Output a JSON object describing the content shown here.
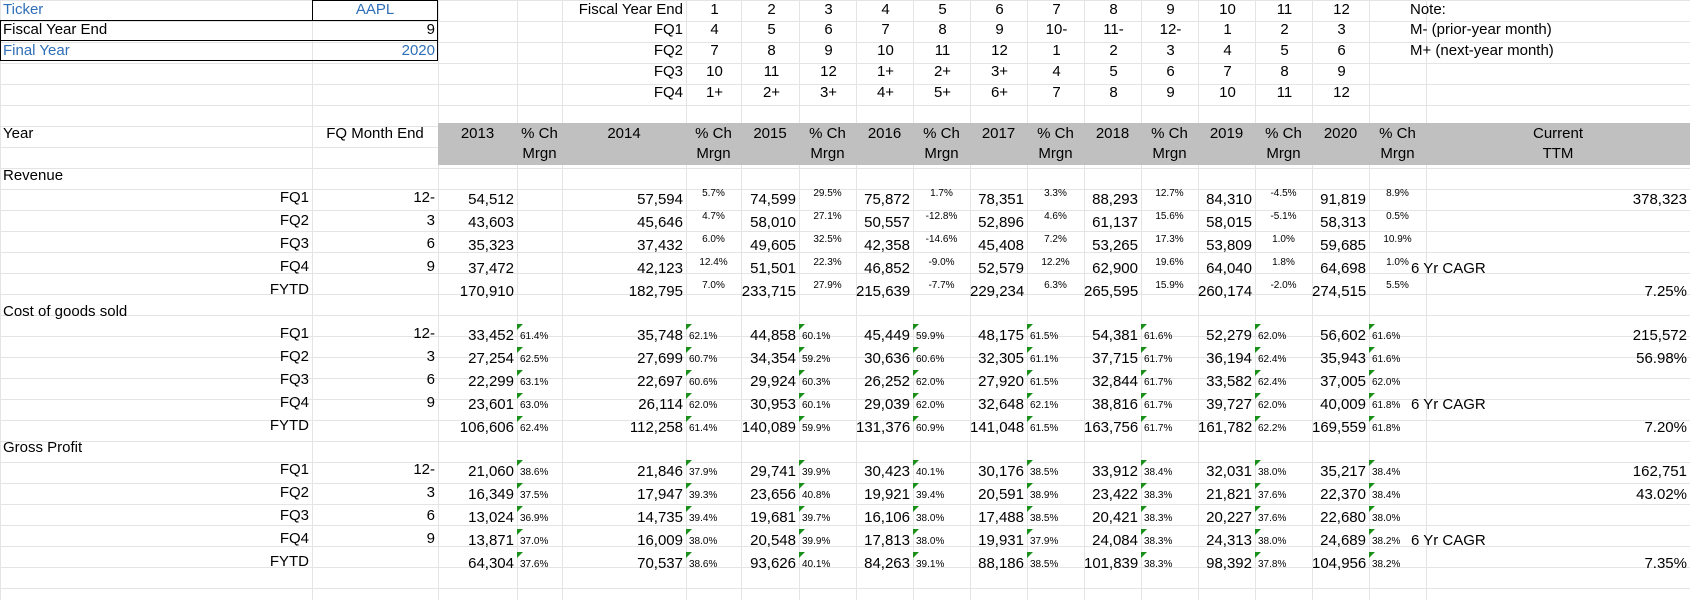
{
  "inputs": {
    "ticker_label": "Ticker",
    "ticker_value": "AAPL",
    "fye_label": "Fiscal Year End",
    "fye_value": "9",
    "final_year_label": "Final Year",
    "final_year_value": "2020"
  },
  "fq_map": {
    "header_label": "Fiscal Year End",
    "months": [
      "1",
      "2",
      "3",
      "4",
      "5",
      "6",
      "7",
      "8",
      "9",
      "10",
      "11",
      "12"
    ],
    "rows": [
      {
        "label": "FQ1",
        "values": [
          "4",
          "5",
          "6",
          "7",
          "8",
          "9",
          "10-",
          "11-",
          "12-",
          "1",
          "2",
          "3"
        ]
      },
      {
        "label": "FQ2",
        "values": [
          "7",
          "8",
          "9",
          "10",
          "11",
          "12",
          "1",
          "2",
          "3",
          "4",
          "5",
          "6"
        ]
      },
      {
        "label": "FQ3",
        "values": [
          "10",
          "11",
          "12",
          "1+",
          "2+",
          "3+",
          "4",
          "5",
          "6",
          "7",
          "8",
          "9"
        ]
      },
      {
        "label": "FQ4",
        "values": [
          "1+",
          "2+",
          "3+",
          "4+",
          "5+",
          "6+",
          "7",
          "8",
          "9",
          "10",
          "11",
          "12"
        ]
      }
    ]
  },
  "note": {
    "title": "Note:",
    "line1": "M- (prior-year month)",
    "line2": "M+ (next-year month)"
  },
  "header": {
    "year_label": "Year",
    "fq_month_end_label": "FQ Month End",
    "years": [
      "2013",
      "2014",
      "2015",
      "2016",
      "2017",
      "2018",
      "2019",
      "2020"
    ],
    "pct_label_top": "% Ch",
    "pct_label_bottom": "Mrgn",
    "current_top": "Current",
    "current_bottom": "TTM"
  },
  "sections": [
    {
      "title": "Revenue",
      "rows": [
        {
          "label": "FQ1",
          "month": "12-",
          "values": [
            "54,512",
            "57,594",
            "74,599",
            "75,872",
            "78,351",
            "88,293",
            "84,310",
            "91,819"
          ],
          "pcts": [
            "",
            "5.7%",
            "29.5%",
            "1.7%",
            "3.3%",
            "12.7%",
            "-4.5%",
            "8.9%"
          ],
          "right": "378,323"
        },
        {
          "label": "FQ2",
          "month": "3",
          "values": [
            "43,603",
            "45,646",
            "58,010",
            "50,557",
            "52,896",
            "61,137",
            "58,015",
            "58,313"
          ],
          "pcts": [
            "",
            "4.7%",
            "27.1%",
            "-12.8%",
            "4.6%",
            "15.6%",
            "-5.1%",
            "0.5%"
          ],
          "right": ""
        },
        {
          "label": "FQ3",
          "month": "6",
          "values": [
            "35,323",
            "37,432",
            "49,605",
            "42,358",
            "45,408",
            "53,265",
            "53,809",
            "59,685"
          ],
          "pcts": [
            "",
            "6.0%",
            "32.5%",
            "-14.6%",
            "7.2%",
            "17.3%",
            "1.0%",
            "10.9%"
          ],
          "right": ""
        },
        {
          "label": "FQ4",
          "month": "9",
          "values": [
            "37,472",
            "42,123",
            "51,501",
            "46,852",
            "52,579",
            "62,900",
            "64,040",
            "64,698"
          ],
          "pcts": [
            "",
            "12.4%",
            "22.3%",
            "-9.0%",
            "12.2%",
            "19.6%",
            "1.8%",
            "1.0%"
          ],
          "right": "6 Yr CAGR"
        },
        {
          "label": "FYTD",
          "month": "",
          "values": [
            "170,910",
            "182,795",
            "233,715",
            "215,639",
            "229,234",
            "265,595",
            "260,174",
            "274,515"
          ],
          "pcts": [
            "",
            "7.0%",
            "27.9%",
            "-7.7%",
            "6.3%",
            "15.9%",
            "-2.0%",
            "5.5%"
          ],
          "right": "7.25%"
        }
      ]
    },
    {
      "title": "Cost of goods sold",
      "rows": [
        {
          "label": "FQ1",
          "month": "12-",
          "values": [
            "33,452",
            "35,748",
            "44,858",
            "45,449",
            "48,175",
            "54,381",
            "52,279",
            "56,602"
          ],
          "pcts": [
            "61.4%",
            "62.1%",
            "60.1%",
            "59.9%",
            "61.5%",
            "61.6%",
            "62.0%",
            "61.6%"
          ],
          "right": "215,572"
        },
        {
          "label": "FQ2",
          "month": "3",
          "values": [
            "27,254",
            "27,699",
            "34,354",
            "30,636",
            "32,305",
            "37,715",
            "36,194",
            "35,943"
          ],
          "pcts": [
            "62.5%",
            "60.7%",
            "59.2%",
            "60.6%",
            "61.1%",
            "61.7%",
            "62.4%",
            "61.6%"
          ],
          "right": "56.98%"
        },
        {
          "label": "FQ3",
          "month": "6",
          "values": [
            "22,299",
            "22,697",
            "29,924",
            "26,252",
            "27,920",
            "32,844",
            "33,582",
            "37,005"
          ],
          "pcts": [
            "63.1%",
            "60.6%",
            "60.3%",
            "62.0%",
            "61.5%",
            "61.7%",
            "62.4%",
            "62.0%"
          ],
          "right": ""
        },
        {
          "label": "FQ4",
          "month": "9",
          "values": [
            "23,601",
            "26,114",
            "30,953",
            "29,039",
            "32,648",
            "38,816",
            "39,727",
            "40,009"
          ],
          "pcts": [
            "63.0%",
            "62.0%",
            "60.1%",
            "62.0%",
            "62.1%",
            "61.7%",
            "62.0%",
            "61.8%"
          ],
          "right": "6 Yr CAGR"
        },
        {
          "label": "FYTD",
          "month": "",
          "values": [
            "106,606",
            "112,258",
            "140,089",
            "131,376",
            "141,048",
            "163,756",
            "161,782",
            "169,559"
          ],
          "pcts": [
            "62.4%",
            "61.4%",
            "59.9%",
            "60.9%",
            "61.5%",
            "61.7%",
            "62.2%",
            "61.8%"
          ],
          "right": "7.20%"
        }
      ]
    },
    {
      "title": "Gross Profit",
      "rows": [
        {
          "label": "FQ1",
          "month": "12-",
          "values": [
            "21,060",
            "21,846",
            "29,741",
            "30,423",
            "30,176",
            "33,912",
            "32,031",
            "35,217"
          ],
          "pcts": [
            "38.6%",
            "37.9%",
            "39.9%",
            "40.1%",
            "38.5%",
            "38.4%",
            "38.0%",
            "38.4%"
          ],
          "right": "162,751"
        },
        {
          "label": "FQ2",
          "month": "3",
          "values": [
            "16,349",
            "17,947",
            "23,656",
            "19,921",
            "20,591",
            "23,422",
            "21,821",
            "22,370"
          ],
          "pcts": [
            "37.5%",
            "39.3%",
            "40.8%",
            "39.4%",
            "38.9%",
            "38.3%",
            "37.6%",
            "38.4%"
          ],
          "right": "43.02%"
        },
        {
          "label": "FQ3",
          "month": "6",
          "values": [
            "13,024",
            "14,735",
            "19,681",
            "16,106",
            "17,488",
            "20,421",
            "20,227",
            "22,680"
          ],
          "pcts": [
            "36.9%",
            "39.4%",
            "39.7%",
            "38.0%",
            "38.5%",
            "38.3%",
            "37.6%",
            "38.0%"
          ],
          "right": ""
        },
        {
          "label": "FQ4",
          "month": "9",
          "values": [
            "13,871",
            "16,009",
            "20,548",
            "17,813",
            "19,931",
            "24,084",
            "24,313",
            "24,689"
          ],
          "pcts": [
            "37.0%",
            "38.0%",
            "39.9%",
            "38.0%",
            "37.9%",
            "38.3%",
            "38.0%",
            "38.2%"
          ],
          "right": "6 Yr CAGR"
        },
        {
          "label": "FYTD",
          "month": "",
          "values": [
            "64,304",
            "70,537",
            "93,626",
            "84,263",
            "88,186",
            "101,839",
            "98,392",
            "104,956"
          ],
          "pcts": [
            "37.6%",
            "38.6%",
            "40.1%",
            "39.1%",
            "38.5%",
            "38.3%",
            "37.8%",
            "38.2%"
          ],
          "right": "7.35%"
        }
      ]
    }
  ]
}
